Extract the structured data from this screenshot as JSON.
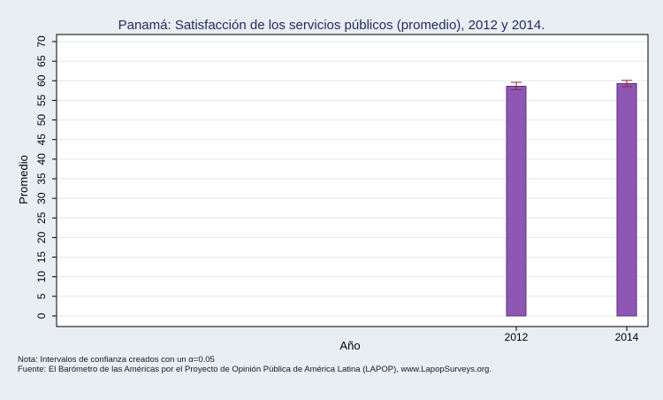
{
  "chart_data": {
    "type": "bar",
    "title": "Panamá: Satisfacción de los servicios públicos (promedio), 2012 y 2014.",
    "xlabel": "Año",
    "ylabel": "Promedio",
    "categories": [
      "2012",
      "2014"
    ],
    "values": [
      58.6,
      59.3
    ],
    "ci_low": [
      57.7,
      58.5
    ],
    "ci_high": [
      59.6,
      60.1
    ],
    "ylim": [
      0,
      70
    ],
    "yticks": [
      0,
      5,
      10,
      15,
      20,
      25,
      30,
      35,
      40,
      45,
      50,
      55,
      60,
      65,
      70
    ],
    "grid": true,
    "colors": {
      "bar": "#8f57b4",
      "bar_edge": "#5b2e7e",
      "error_bar": "#8a2a3a",
      "title": "#1f2a5c",
      "grid": "#e2e8ec"
    }
  },
  "notes": {
    "line1": "Nota: Intervalos de confianza creados con un α=0.05",
    "line2": "Fuente: El Barómetro de las Américas por el Proyecto de Opinión Pública de América Latina (LAPOP), www.LapopSurveys.org."
  }
}
